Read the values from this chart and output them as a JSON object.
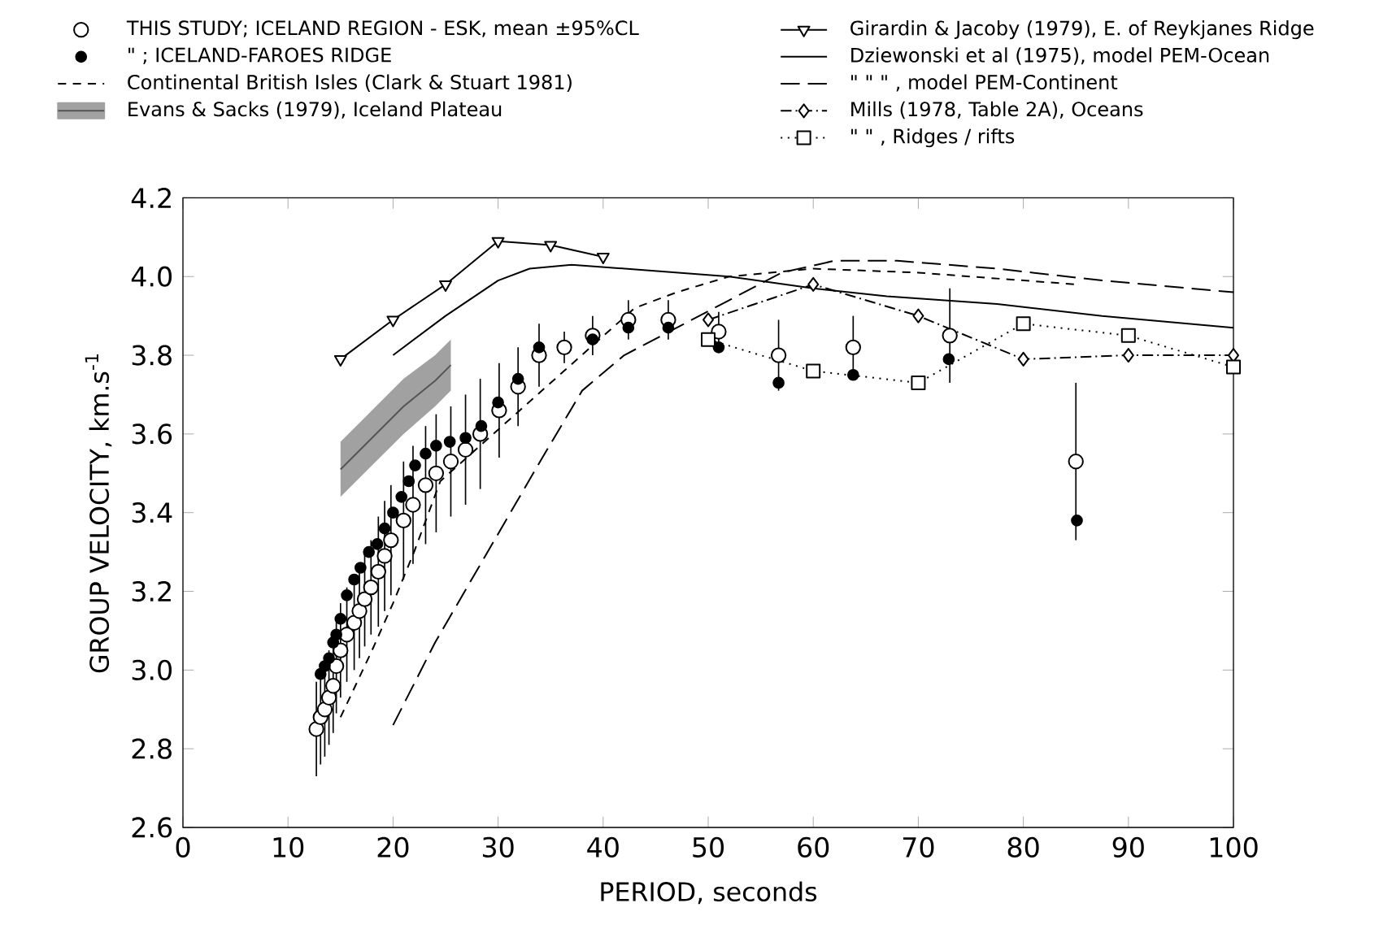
{
  "chart_data": {
    "type": "line",
    "xlabel": "PERIOD, seconds",
    "ylabel": "GROUP VELOCITY, km.s$^{-1}$",
    "xlim": [
      0,
      100
    ],
    "ylim": [
      2.6,
      4.2
    ],
    "xticks": [
      0,
      10,
      20,
      30,
      40,
      50,
      60,
      70,
      80,
      90,
      100
    ],
    "yticks": [
      {
        "value": 2.6,
        "label": "2.6"
      },
      {
        "value": 2.8,
        "label": "2.8"
      },
      {
        "value": 3.0,
        "label": "3.0"
      },
      {
        "value": 3.2,
        "label": "3.2"
      },
      {
        "value": 3.4,
        "label": "3.4"
      },
      {
        "value": 3.6,
        "label": "3.6"
      },
      {
        "value": 3.8,
        "label": "3.8"
      },
      {
        "value": 4.0,
        "label": "4.0"
      },
      {
        "value": 4.2,
        "label": "4.2"
      }
    ],
    "grid": false,
    "legend": "top",
    "series": [
      {
        "name": "THIS STUDY; ICELAND REGION - ESK, mean ±95%CL",
        "type": "scatter",
        "marker": "circle",
        "color": "#ffffff",
        "x": [
          12.7,
          13.1,
          13.5,
          13.9,
          14.3,
          14.6,
          15.0,
          15.6,
          16.3,
          16.8,
          17.3,
          17.9,
          18.6,
          19.2,
          19.8,
          21.0,
          21.9,
          23.1,
          24.1,
          25.5,
          26.9,
          28.3,
          30.1,
          31.9,
          33.9,
          36.3,
          39,
          42.4,
          46.2,
          51.0,
          56.7,
          63.8,
          73,
          85
        ],
        "values": [
          2.85,
          2.88,
          2.9,
          2.93,
          2.96,
          3.01,
          3.05,
          3.09,
          3.12,
          3.15,
          3.18,
          3.21,
          3.25,
          3.29,
          3.33,
          3.38,
          3.42,
          3.47,
          3.5,
          3.53,
          3.56,
          3.6,
          3.66,
          3.72,
          3.8,
          3.82,
          3.85,
          3.89,
          3.89,
          3.86,
          3.8,
          3.82,
          3.85,
          3.53
        ],
        "errors": [
          0.12,
          0.12,
          0.12,
          0.12,
          0.12,
          0.12,
          0.12,
          0.12,
          0.12,
          0.12,
          0.12,
          0.12,
          0.14,
          0.14,
          0.14,
          0.15,
          0.15,
          0.15,
          0.15,
          0.14,
          0.14,
          0.14,
          0.12,
          0.1,
          0.08,
          0.04,
          0.05,
          0.05,
          0.05,
          0.05,
          0.09,
          0.08,
          0.12,
          0.2
        ]
      },
      {
        "name": "\" ; ICELAND-FAROES RIDGE",
        "type": "scatter",
        "marker": "circle",
        "color": "#000000",
        "x": [
          13.1,
          13.5,
          13.9,
          14.3,
          14.6,
          15.0,
          15.6,
          16.3,
          16.9,
          17.7,
          18.5,
          19.2,
          20,
          20.8,
          21.5,
          22.1,
          23.1,
          24.1,
          25.4,
          26.9,
          28.4,
          30,
          31.9,
          33.9,
          39,
          42.4,
          46.2,
          51,
          56.7,
          63.8,
          72.9,
          85.1
        ],
        "values": [
          2.99,
          3.01,
          3.03,
          3.07,
          3.09,
          3.13,
          3.19,
          3.23,
          3.26,
          3.3,
          3.32,
          3.36,
          3.4,
          3.44,
          3.48,
          3.52,
          3.55,
          3.57,
          3.58,
          3.59,
          3.62,
          3.68,
          3.74,
          3.82,
          3.84,
          3.87,
          3.87,
          3.82,
          3.73,
          3.75,
          3.79,
          3.38
        ]
      },
      {
        "name": "Continental British Isles (Clark & Stuart 1981)",
        "type": "line",
        "marker": "none",
        "line_style": "dashed",
        "color": "#000000",
        "x": [
          15,
          18,
          20,
          22,
          24.5,
          43,
          47,
          52,
          60,
          70,
          85
        ],
        "values": [
          2.88,
          3.05,
          3.17,
          3.3,
          3.48,
          3.92,
          3.96,
          4.0,
          4.02,
          4.01,
          3.98
        ]
      },
      {
        "name": "Evans & Sacks (1979), Iceland Plateau",
        "type": "line",
        "marker": "none",
        "line_style": "solid",
        "color": "#555555",
        "x": [
          15,
          18,
          21,
          24,
          25.5
        ],
        "values": [
          3.51,
          3.59,
          3.67,
          3.735,
          3.775
        ],
        "lower": [
          3.44,
          3.52,
          3.6,
          3.67,
          3.71
        ],
        "upper": [
          3.58,
          3.66,
          3.74,
          3.8,
          3.84
        ]
      },
      {
        "name": "Girardin & Jacoby (1979), E. of Reykjanes Ridge",
        "type": "line",
        "marker": "triangle",
        "line_style": "solid",
        "color": "#000000",
        "x": [
          15,
          20,
          25,
          30,
          35,
          40
        ],
        "values": [
          3.79,
          3.89,
          3.98,
          4.09,
          4.08,
          4.05
        ]
      },
      {
        "name": "Dziewonski et al (1975), model PEM-Ocean",
        "type": "line",
        "marker": "none",
        "line_style": "solid",
        "color": "#000000",
        "x": [
          20,
          25,
          30,
          33,
          37,
          52,
          60,
          67,
          77.5,
          87.5,
          100
        ],
        "values": [
          3.8,
          3.9,
          3.99,
          4.02,
          4.03,
          4.0,
          3.97,
          3.95,
          3.93,
          3.9,
          3.87
        ]
      },
      {
        "name": "\" \" \" , model PEM-Continent",
        "type": "line",
        "marker": "none",
        "line_style": "longdashed",
        "color": "#000000",
        "x": [
          20,
          24,
          29,
          34,
          38,
          42,
          47,
          52,
          57,
          62,
          68,
          77.5,
          87.5,
          100
        ],
        "values": [
          2.86,
          3.07,
          3.3,
          3.53,
          3.71,
          3.8,
          3.87,
          3.94,
          4.01,
          4.04,
          4.04,
          4.02,
          3.99,
          3.96
        ]
      },
      {
        "name": "Mills (1978, Table 2A), Oceans",
        "type": "line",
        "marker": "diamond",
        "line_style": "dashdot",
        "color": "#000000",
        "x": [
          50,
          60,
          70,
          80,
          90,
          100
        ],
        "values": [
          3.89,
          3.98,
          3.9,
          3.79,
          3.8,
          3.8
        ]
      },
      {
        "name": "\" \" , Ridges / rifts",
        "type": "line",
        "marker": "square",
        "line_style": "dotted",
        "color": "#000000",
        "x": [
          50,
          60,
          70,
          80,
          90,
          100
        ],
        "values": [
          3.84,
          3.76,
          3.73,
          3.88,
          3.85,
          3.77
        ]
      }
    ]
  }
}
